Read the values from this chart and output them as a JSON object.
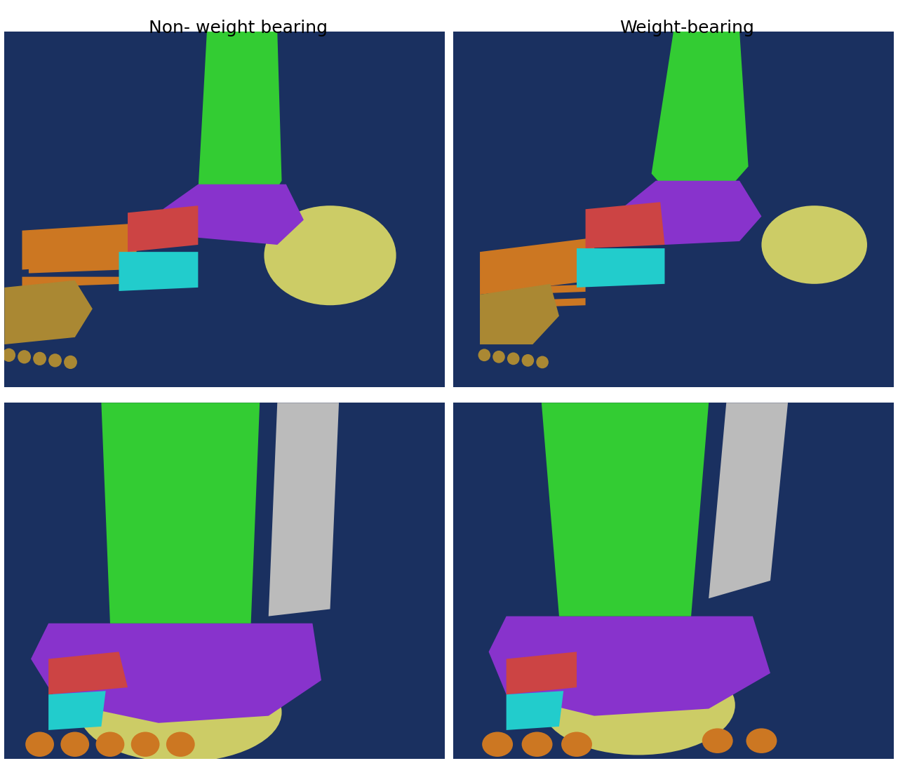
{
  "title_left": "Non- weight bearing",
  "title_right": "Weight-bearing",
  "title_fontsize": 18,
  "title_color": "#000000",
  "title_font": "DejaVu Sans",
  "background_color": "#ffffff",
  "panel_bg": "#1a3060",
  "colors": {
    "tibia": "#33cc33",
    "talus": "#8833cc",
    "calcaneus": "#cccc66",
    "navicular": "#cc4444",
    "cuboid": "#22cccc",
    "cuneiforms": "#cc7722",
    "metatarsals_toes": "#aa8833",
    "fibula": "#bbbbbb"
  }
}
